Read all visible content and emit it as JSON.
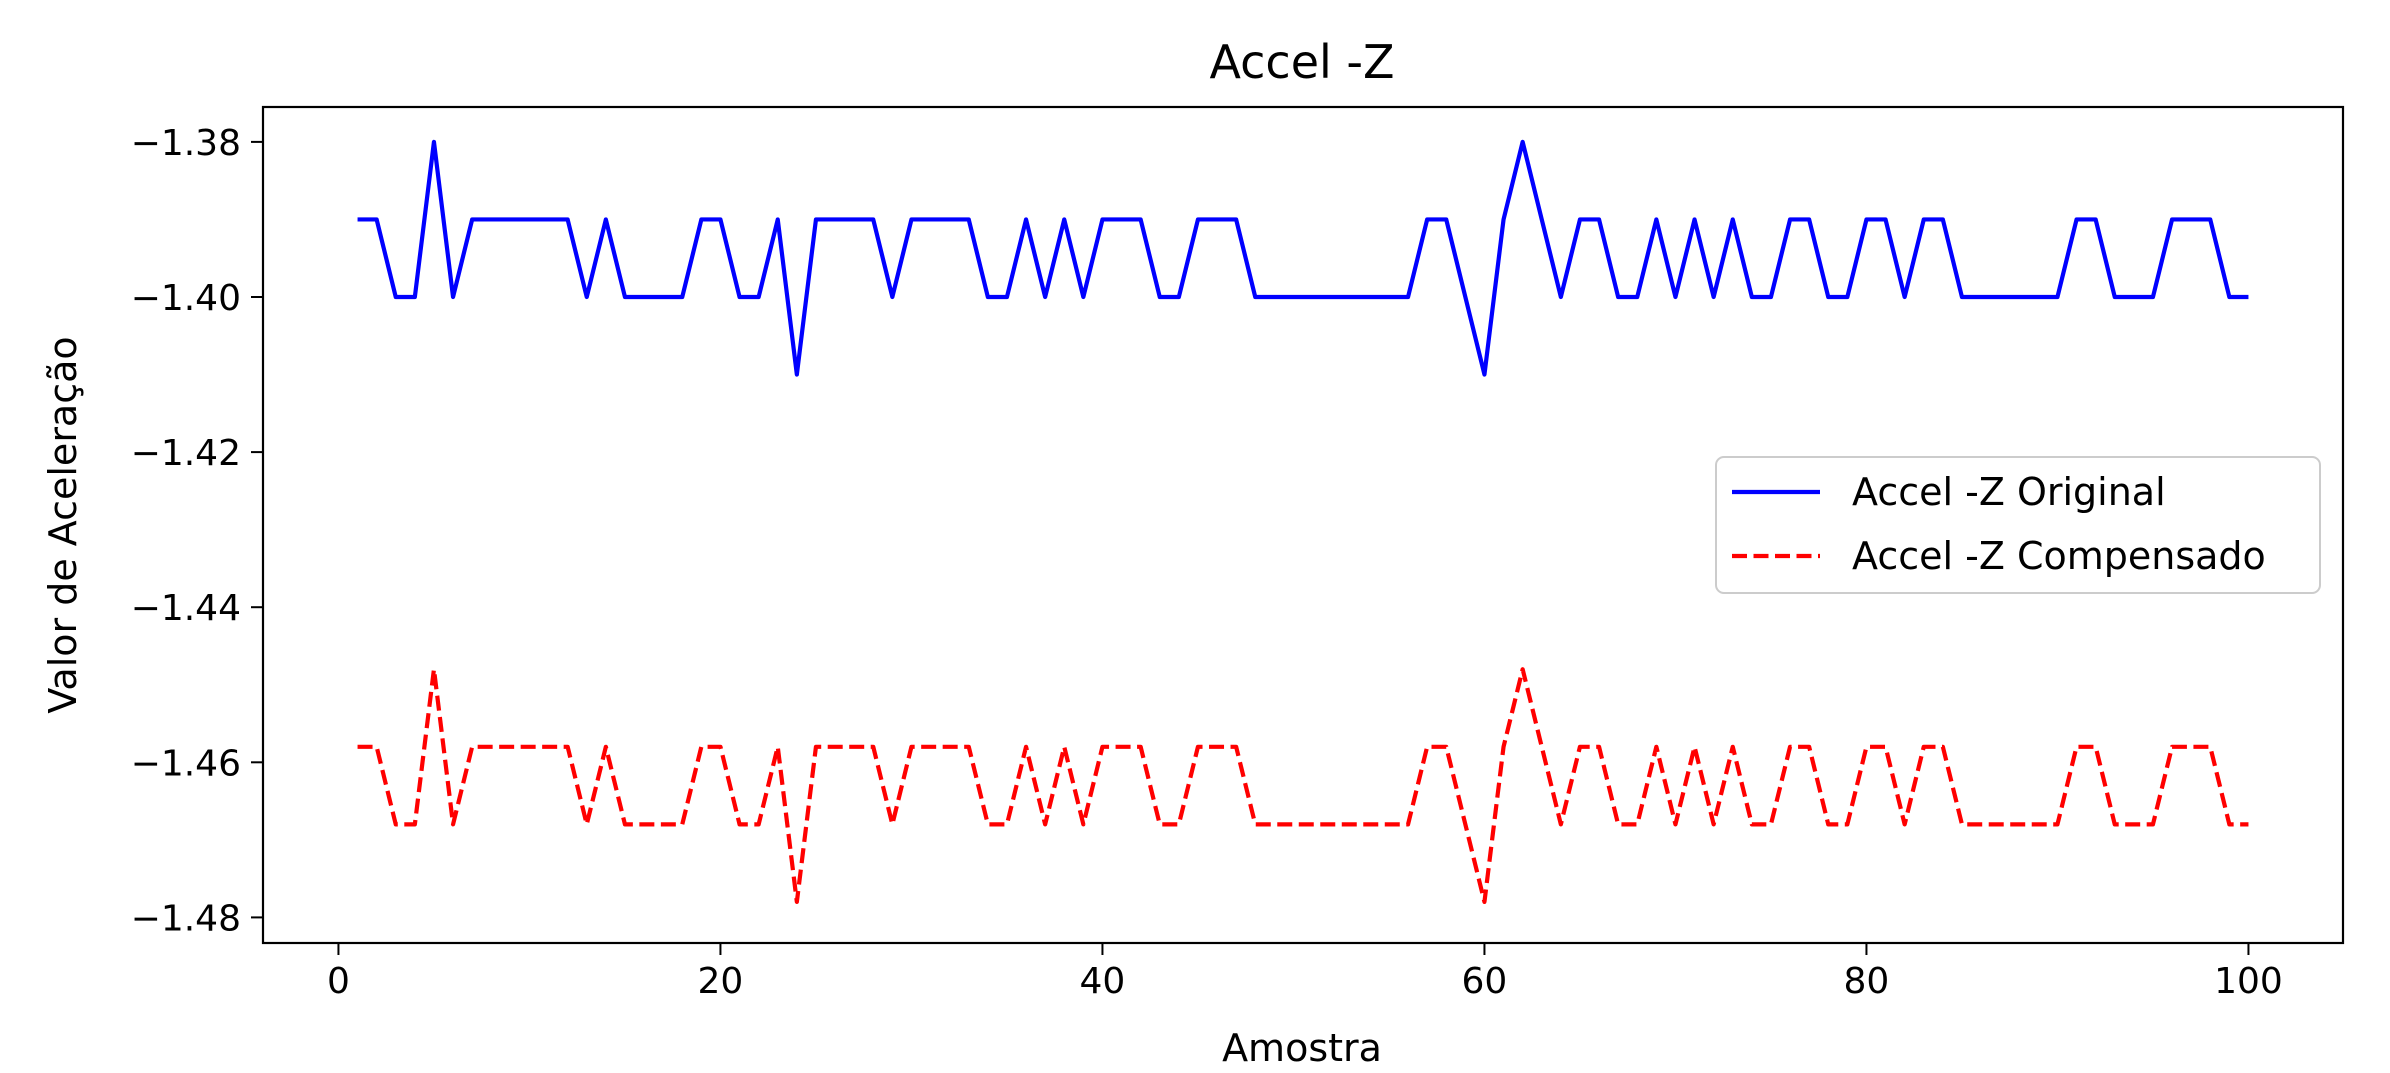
{
  "chart_data": {
    "type": "line",
    "title": "Accel -Z",
    "xlabel": "Amostra",
    "ylabel": "Valor de Aceleração",
    "xlim": [
      -3.95,
      104.95
    ],
    "ylim": [
      -1.4833,
      -1.3755
    ],
    "xticks": [
      0,
      20,
      40,
      60,
      80,
      100
    ],
    "xtick_labels": [
      "0",
      "20",
      "40",
      "60",
      "80",
      "100"
    ],
    "yticks": [
      -1.48,
      -1.46,
      -1.44,
      -1.42,
      -1.4,
      -1.38
    ],
    "ytick_labels": [
      "−1.48",
      "−1.46",
      "−1.44",
      "−1.42",
      "−1.40",
      "−1.38"
    ],
    "grid": false,
    "legend_position": "center-right",
    "x": [
      1,
      2,
      3,
      4,
      5,
      6,
      7,
      8,
      9,
      10,
      11,
      12,
      13,
      14,
      15,
      16,
      17,
      18,
      19,
      20,
      21,
      22,
      23,
      24,
      25,
      26,
      27,
      28,
      29,
      30,
      31,
      32,
      33,
      34,
      35,
      36,
      37,
      38,
      39,
      40,
      41,
      42,
      43,
      44,
      45,
      46,
      47,
      48,
      49,
      50,
      51,
      52,
      53,
      54,
      55,
      56,
      57,
      58,
      59,
      60,
      61,
      62,
      63,
      64,
      65,
      66,
      67,
      68,
      69,
      70,
      71,
      72,
      73,
      74,
      75,
      76,
      77,
      78,
      79,
      80,
      81,
      82,
      83,
      84,
      85,
      86,
      87,
      88,
      89,
      90,
      91,
      92,
      93,
      94,
      95,
      96,
      97,
      98,
      99,
      100
    ],
    "series": [
      {
        "name": "Accel -Z Original",
        "color": "#0000ff",
        "style": "solid",
        "values": [
          -1.39,
          -1.39,
          -1.4,
          -1.4,
          -1.38,
          -1.4,
          -1.39,
          -1.39,
          -1.39,
          -1.39,
          -1.39,
          -1.39,
          -1.4,
          -1.39,
          -1.4,
          -1.4,
          -1.4,
          -1.4,
          -1.39,
          -1.39,
          -1.4,
          -1.4,
          -1.39,
          -1.41,
          -1.39,
          -1.39,
          -1.39,
          -1.39,
          -1.4,
          -1.39,
          -1.39,
          -1.39,
          -1.39,
          -1.4,
          -1.4,
          -1.39,
          -1.4,
          -1.39,
          -1.4,
          -1.39,
          -1.39,
          -1.39,
          -1.4,
          -1.4,
          -1.39,
          -1.39,
          -1.39,
          -1.4,
          -1.4,
          -1.4,
          -1.4,
          -1.4,
          -1.4,
          -1.4,
          -1.4,
          -1.4,
          -1.39,
          -1.39,
          -1.4,
          -1.41,
          -1.39,
          -1.38,
          -1.39,
          -1.4,
          -1.39,
          -1.39,
          -1.4,
          -1.4,
          -1.39,
          -1.4,
          -1.39,
          -1.4,
          -1.39,
          -1.4,
          -1.4,
          -1.39,
          -1.39,
          -1.4,
          -1.4,
          -1.39,
          -1.39,
          -1.4,
          -1.39,
          -1.39,
          -1.4,
          -1.4,
          -1.4,
          -1.4,
          -1.4,
          -1.4,
          -1.39,
          -1.39,
          -1.4,
          -1.4,
          -1.4,
          -1.39,
          -1.39,
          -1.39,
          -1.4,
          -1.4
        ]
      },
      {
        "name": "Accel -Z Compensado",
        "color": "#ff0000",
        "style": "dashed",
        "values": [
          -1.458,
          -1.458,
          -1.468,
          -1.468,
          -1.448,
          -1.468,
          -1.458,
          -1.458,
          -1.458,
          -1.458,
          -1.458,
          -1.458,
          -1.468,
          -1.458,
          -1.468,
          -1.468,
          -1.468,
          -1.468,
          -1.458,
          -1.458,
          -1.468,
          -1.468,
          -1.458,
          -1.478,
          -1.458,
          -1.458,
          -1.458,
          -1.458,
          -1.468,
          -1.458,
          -1.458,
          -1.458,
          -1.458,
          -1.468,
          -1.468,
          -1.458,
          -1.468,
          -1.458,
          -1.468,
          -1.458,
          -1.458,
          -1.458,
          -1.468,
          -1.468,
          -1.458,
          -1.458,
          -1.458,
          -1.468,
          -1.468,
          -1.468,
          -1.468,
          -1.468,
          -1.468,
          -1.468,
          -1.468,
          -1.468,
          -1.458,
          -1.458,
          -1.468,
          -1.478,
          -1.458,
          -1.448,
          -1.458,
          -1.468,
          -1.458,
          -1.458,
          -1.468,
          -1.468,
          -1.458,
          -1.468,
          -1.458,
          -1.468,
          -1.458,
          -1.468,
          -1.468,
          -1.458,
          -1.458,
          -1.468,
          -1.468,
          -1.458,
          -1.458,
          -1.468,
          -1.458,
          -1.458,
          -1.468,
          -1.468,
          -1.468,
          -1.468,
          -1.468,
          -1.468,
          -1.458,
          -1.458,
          -1.468,
          -1.468,
          -1.468,
          -1.458,
          -1.458,
          -1.458,
          -1.468,
          -1.468
        ]
      }
    ]
  }
}
